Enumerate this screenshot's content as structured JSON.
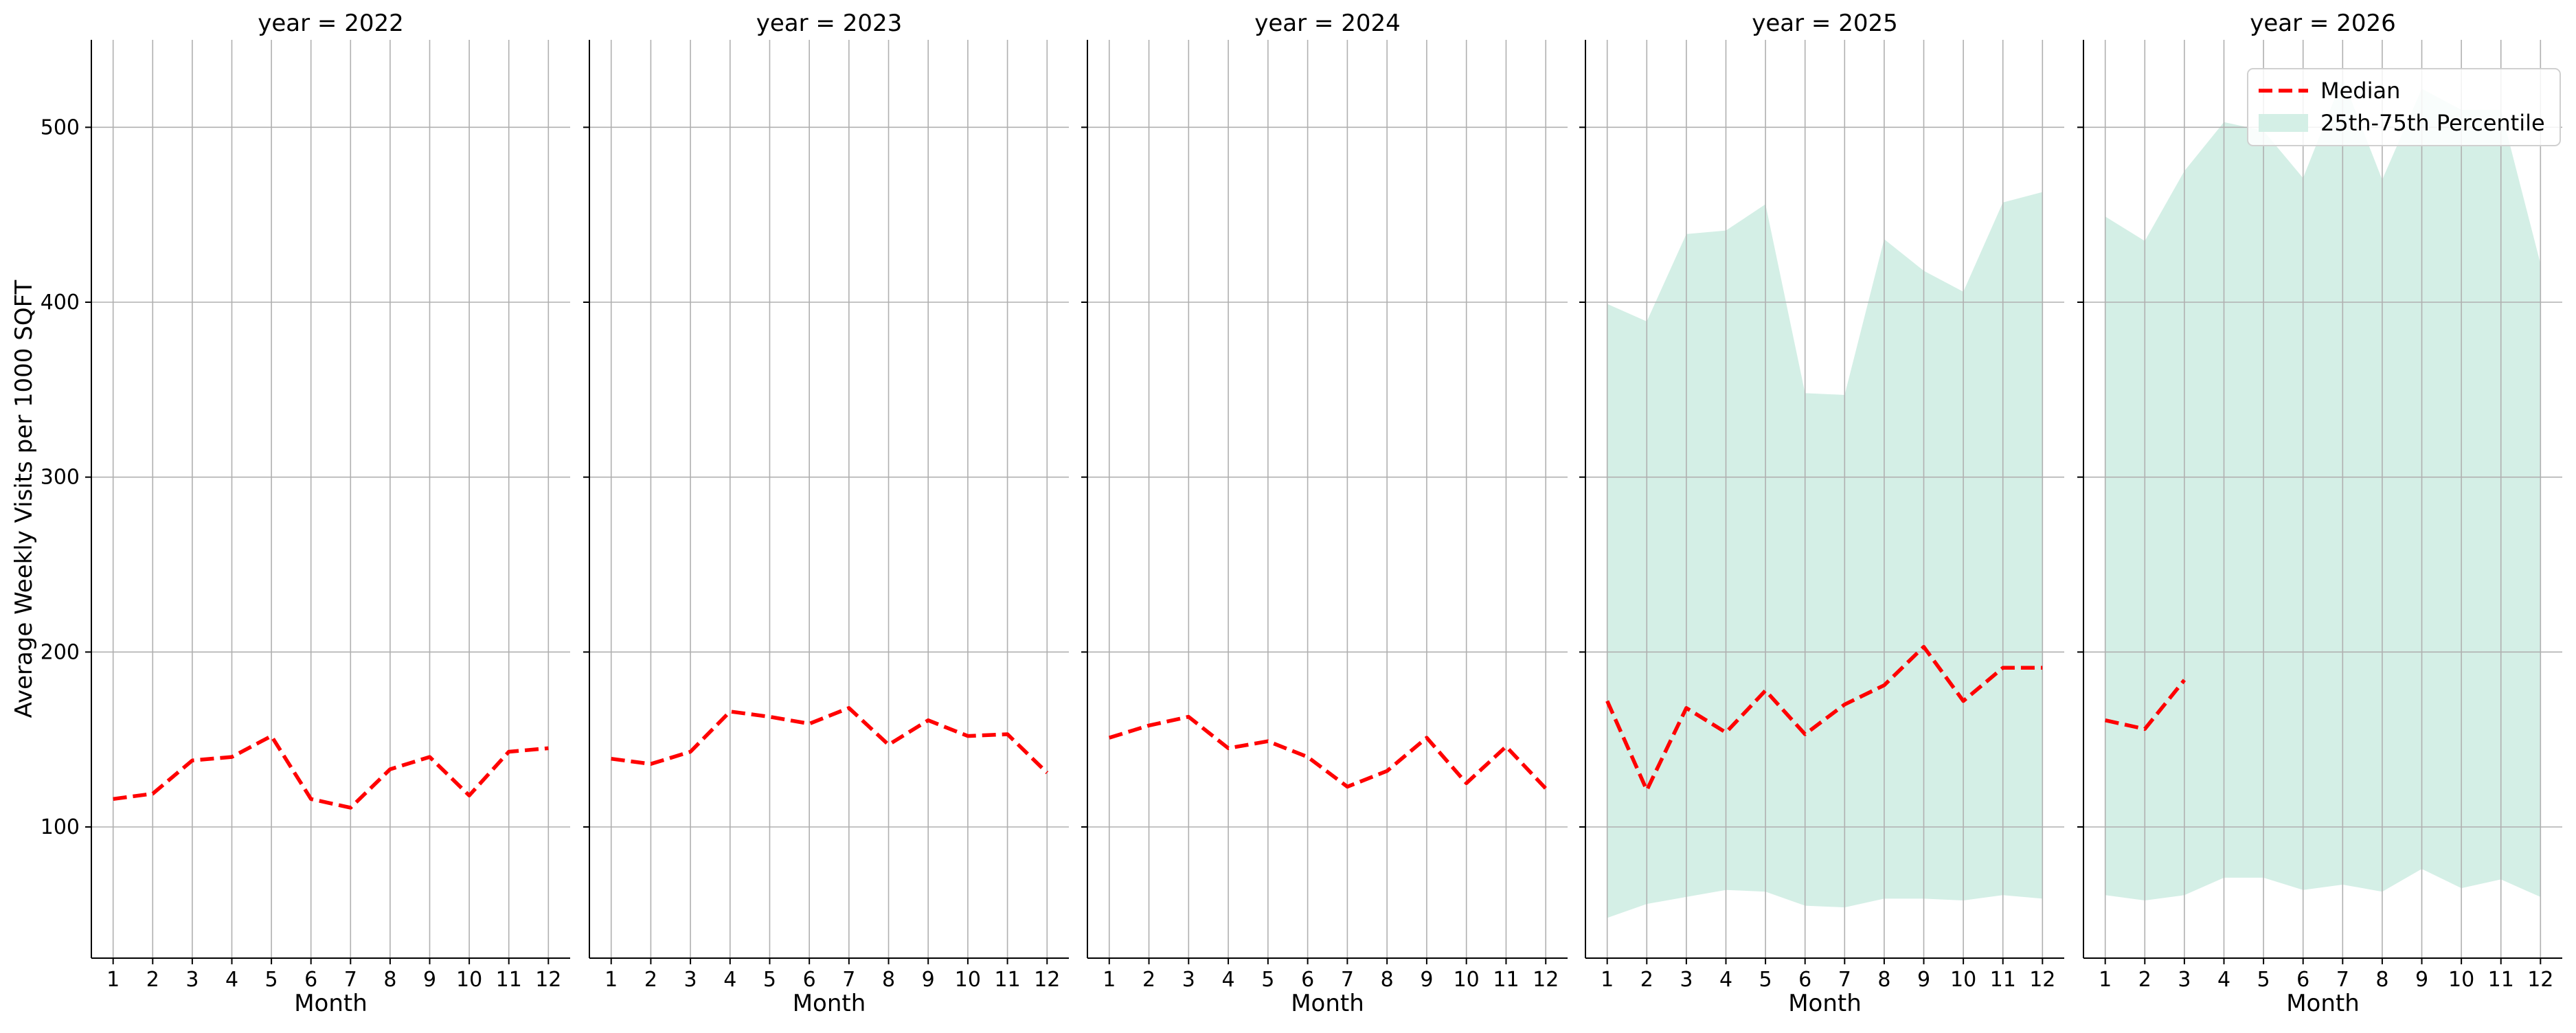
{
  "chart_data": {
    "type": "line",
    "ylabel": "Average Weekly Visits per 1000 SQFT",
    "xlabel": "Month",
    "ylim": [
      25,
      550
    ],
    "yticks": [
      100,
      200,
      300,
      400,
      500
    ],
    "xticks": [
      1,
      2,
      3,
      4,
      5,
      6,
      7,
      8,
      9,
      10,
      11,
      12
    ],
    "grid": true,
    "legend": {
      "location": "top-right",
      "entries": [
        {
          "label": "Median",
          "style": "dashed-line",
          "color": "#ff0000"
        },
        {
          "label": "25th-75th Percentile",
          "style": "band",
          "color": "#d4efe6"
        }
      ]
    },
    "colors": {
      "median": "#ff0000",
      "band": "#d4efe6",
      "grid": "#b0b0b0"
    },
    "facets": [
      {
        "title": "year = 2022",
        "median": {
          "x": [
            1,
            2,
            3,
            4,
            5,
            6,
            7,
            8,
            9,
            10,
            11,
            12
          ],
          "y": [
            116,
            119,
            138,
            140,
            152,
            116,
            111,
            133,
            140,
            118,
            143,
            145
          ]
        }
      },
      {
        "title": "year = 2023",
        "median": {
          "x": [
            1,
            2,
            3,
            4,
            5,
            6,
            7,
            8,
            9,
            10,
            11,
            12
          ],
          "y": [
            139,
            136,
            143,
            166,
            163,
            159,
            168,
            147,
            161,
            152,
            153,
            131
          ]
        }
      },
      {
        "title": "year = 2024",
        "median": {
          "x": [
            1,
            2,
            3,
            4,
            5,
            6,
            7,
            8,
            9,
            10,
            11,
            12
          ],
          "y": [
            151,
            158,
            163,
            145,
            149,
            140,
            123,
            132,
            151,
            125,
            146,
            122
          ]
        }
      },
      {
        "title": "year = 2025",
        "median": {
          "x": [
            1,
            2,
            3,
            4,
            5,
            6,
            7,
            8,
            9,
            10,
            11,
            12
          ],
          "y": [
            172,
            121,
            168,
            154,
            178,
            153,
            170,
            181,
            203,
            172,
            191,
            191
          ]
        },
        "band": {
          "x": [
            1,
            2,
            3,
            4,
            5,
            6,
            7,
            8,
            9,
            10,
            11,
            12
          ],
          "lower": [
            48,
            56,
            60,
            64,
            63,
            55,
            54,
            59,
            59,
            58,
            61,
            59
          ],
          "upper": [
            399,
            389,
            439,
            441,
            456,
            348,
            347,
            436,
            418,
            406,
            457,
            463
          ]
        }
      },
      {
        "title": "year = 2026",
        "median": {
          "x": [
            1,
            2,
            3
          ],
          "y": [
            161,
            156,
            184
          ]
        },
        "band": {
          "x": [
            1,
            2,
            3,
            4,
            5,
            6,
            7,
            8,
            9,
            10,
            11,
            12
          ],
          "lower": [
            61,
            58,
            61,
            71,
            71,
            64,
            67,
            63,
            76,
            65,
            70,
            60
          ],
          "upper": [
            449,
            435,
            475,
            503,
            498,
            471,
            528,
            470,
            522,
            510,
            510,
            422
          ]
        }
      }
    ]
  }
}
